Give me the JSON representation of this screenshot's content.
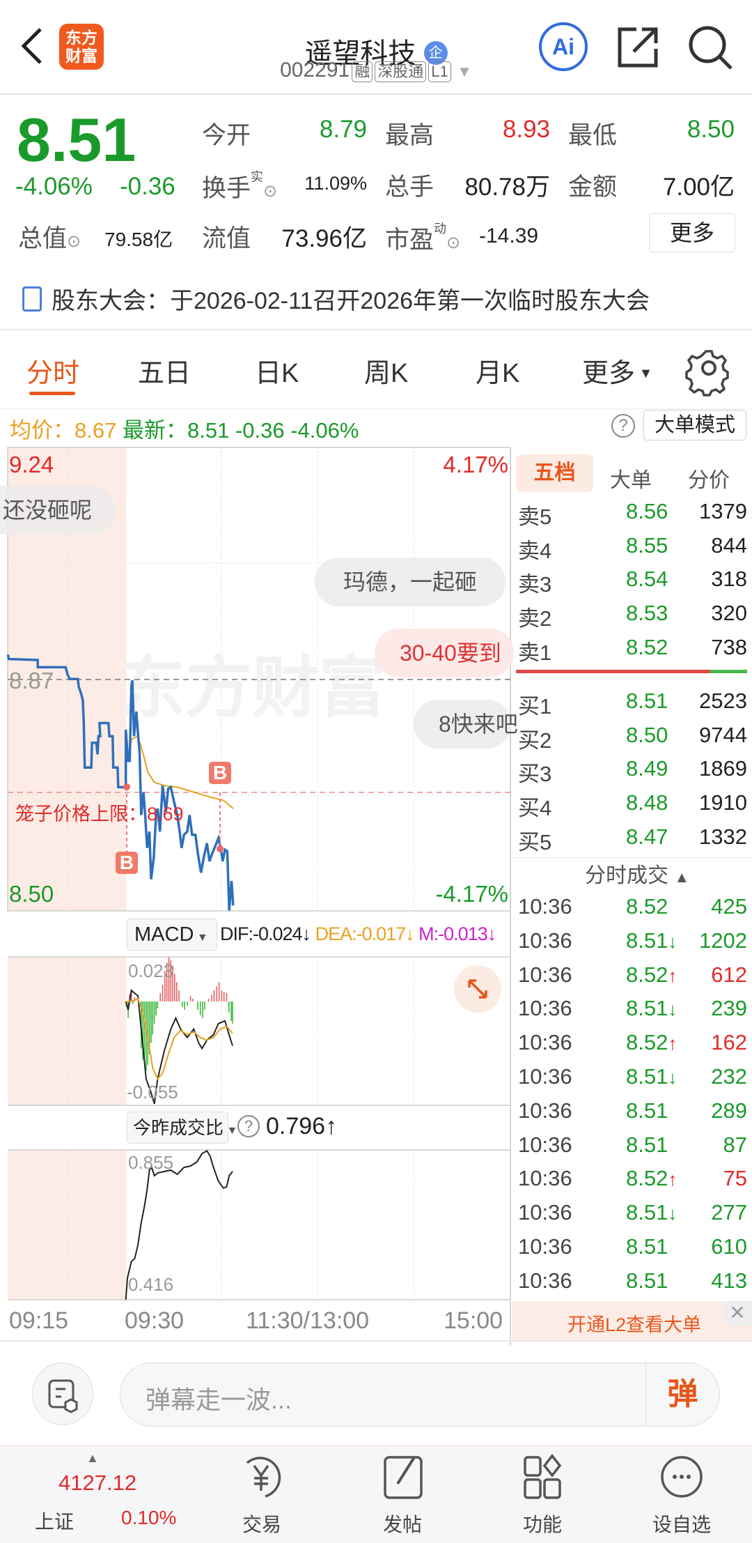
{
  "header": {
    "title": "遥望科技",
    "enterprise_badge": "企",
    "code": "002291",
    "tags": [
      "融",
      "深股通",
      "L1"
    ],
    "logo_text": "东方财富",
    "ai_label": "Ai"
  },
  "quote": {
    "price": "8.51",
    "change_pct": "-4.06%",
    "change": "-0.36",
    "open_label": "今开",
    "open": "8.79",
    "high_label": "最高",
    "high": "8.93",
    "low_label": "最低",
    "low": "8.50",
    "turnover_label": "换手",
    "turnover_sup": "实",
    "turnover": "11.09%",
    "volume_label": "总手",
    "volume": "80.78万",
    "amount_label": "金额",
    "amount": "7.00亿",
    "mktcap_label": "总值",
    "mktcap": "79.58亿",
    "float_label": "流值",
    "float_cap": "73.96亿",
    "pe_label": "市盈",
    "pe_sup": "动",
    "pe": "-14.39",
    "more_label": "更多"
  },
  "notice": {
    "text": "股东大会：于2026-02-11召开2026年第一次临时股东大会"
  },
  "tabs": [
    {
      "label": "分时",
      "active": true
    },
    {
      "label": "五日"
    },
    {
      "label": "日K"
    },
    {
      "label": "周K"
    },
    {
      "label": "月K"
    },
    {
      "label": "更多"
    }
  ],
  "chart_info": {
    "avg_label": "均价：",
    "avg": "8.67",
    "latest_label": "最新：",
    "latest": "8.51",
    "change": "-0.36",
    "change_pct": "-4.06%",
    "big_order_mode": "大单模式"
  },
  "chart": {
    "y_max": "9.24",
    "y_min": "8.50",
    "prev_close": "8.87",
    "pct_max": "4.17%",
    "pct_min": "-4.17%",
    "cage_label": "笼子价格上限：8.69",
    "marker": "B",
    "watermark": "东方财富",
    "danmaku": [
      "还没砸呢",
      "玛德，一起砸",
      "30-40要到",
      "8快来吧"
    ]
  },
  "macd": {
    "selector": "MACD",
    "dif": "DIF:-0.024↓",
    "dea": "DEA:-0.017↓",
    "m": "M:-0.013↓",
    "top": "0.023",
    "bottom": "-0.055",
    "colors": {
      "dif": "#222222",
      "dea": "#e8a020",
      "m": "#cc22cc"
    }
  },
  "ratio": {
    "selector": "今昨成交比",
    "value": "0.796↑",
    "top": "0.855",
    "bottom": "0.416"
  },
  "time_axis": [
    "09:15",
    "09:30",
    "11:30/13:00",
    "15:00"
  ],
  "orderbook": {
    "tabs": [
      "五档",
      "大单",
      "分价"
    ],
    "asks": [
      {
        "label": "卖5",
        "price": "8.56",
        "vol": "1379"
      },
      {
        "label": "卖4",
        "price": "8.55",
        "vol": "844"
      },
      {
        "label": "卖3",
        "price": "8.54",
        "vol": "318"
      },
      {
        "label": "卖2",
        "price": "8.53",
        "vol": "320"
      },
      {
        "label": "卖1",
        "price": "8.52",
        "vol": "738"
      }
    ],
    "bids": [
      {
        "label": "买1",
        "price": "8.51",
        "vol": "2523"
      },
      {
        "label": "买2",
        "price": "8.50",
        "vol": "9744"
      },
      {
        "label": "买3",
        "price": "8.49",
        "vol": "1869"
      },
      {
        "label": "买4",
        "price": "8.48",
        "vol": "1910"
      },
      {
        "label": "买5",
        "price": "8.47",
        "vol": "1332"
      }
    ],
    "trades_title": "分时成交",
    "trades": [
      {
        "time": "10:36",
        "price": "8.52",
        "arrow": "",
        "vol": "425",
        "dir": "g"
      },
      {
        "time": "10:36",
        "price": "8.51",
        "arrow": "↓",
        "vol": "1202",
        "dir": "g"
      },
      {
        "time": "10:36",
        "price": "8.52",
        "arrow": "↑",
        "vol": "612",
        "dir": "r"
      },
      {
        "time": "10:36",
        "price": "8.51",
        "arrow": "↓",
        "vol": "239",
        "dir": "g"
      },
      {
        "time": "10:36",
        "price": "8.52",
        "arrow": "↑",
        "vol": "162",
        "dir": "r"
      },
      {
        "time": "10:36",
        "price": "8.51",
        "arrow": "↓",
        "vol": "232",
        "dir": "g"
      },
      {
        "time": "10:36",
        "price": "8.51",
        "arrow": "",
        "vol": "289",
        "dir": "g"
      },
      {
        "time": "10:36",
        "price": "8.51",
        "arrow": "",
        "vol": "87",
        "dir": "g"
      },
      {
        "time": "10:36",
        "price": "8.52",
        "arrow": "↑",
        "vol": "75",
        "dir": "r"
      },
      {
        "time": "10:36",
        "price": "8.51",
        "arrow": "↓",
        "vol": "277",
        "dir": "g"
      },
      {
        "time": "10:36",
        "price": "8.51",
        "arrow": "",
        "vol": "610",
        "dir": "g"
      },
      {
        "time": "10:36",
        "price": "8.51",
        "arrow": "",
        "vol": "413",
        "dir": "g"
      }
    ],
    "l2_banner": "开通L2查看大单"
  },
  "danmu_input": {
    "placeholder": "弹幕走一波...",
    "send_label": "弹"
  },
  "bottom_nav": {
    "index_name": "上证",
    "index_value": "4127.12",
    "index_pct": "0.10%",
    "items": [
      {
        "label": "交易"
      },
      {
        "label": "发帖"
      },
      {
        "label": "功能"
      },
      {
        "label": "设自选"
      }
    ]
  },
  "colors": {
    "up": "#e02a2a",
    "down": "#1a9a2a",
    "accent": "#e8561a",
    "price_line": "#2f6fba",
    "avg_line": "#e8a020"
  }
}
